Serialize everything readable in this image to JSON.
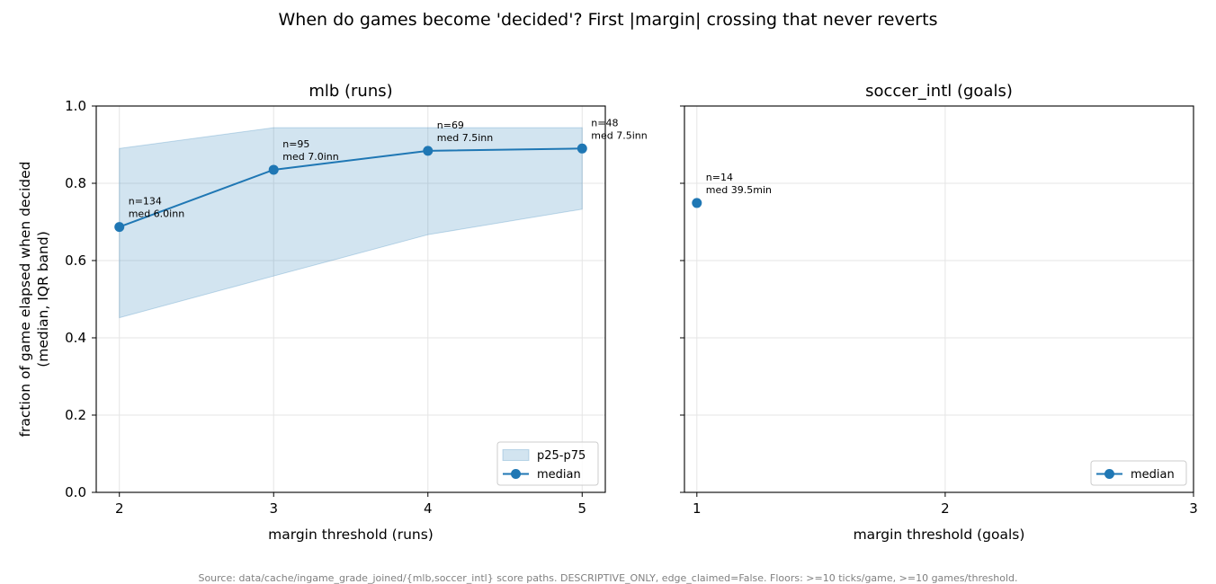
{
  "figure": {
    "suptitle": "When do games become 'decided'? First |margin| crossing that never reverts",
    "footer": "Source: data/cache/ingame_grade_joined/{mlb,soccer_intl} score paths. DESCRIPTIVE_ONLY, edge_claimed=False. Floors: >=10 ticks/game, >=10 games/threshold.",
    "colors": {
      "line": "#1f77b4",
      "band": "#1f77b4",
      "grid": "#e5e5e5",
      "footer": "#808080"
    }
  },
  "chart_data": [
    {
      "type": "line",
      "title": "mlb (runs)",
      "xlabel": "margin threshold (runs)",
      "ylabel": [
        "fraction of game elapsed when decided",
        "(median, IQR band)"
      ],
      "xlim": [
        1.85,
        5.15
      ],
      "ylim": [
        0,
        1.0
      ],
      "xticks": [
        2,
        3,
        4,
        5
      ],
      "yticks": [
        0.0,
        0.2,
        0.4,
        0.6,
        0.8,
        1.0
      ],
      "ytick_labels": [
        "0.0",
        "0.2",
        "0.4",
        "0.6",
        "0.8",
        "1.0"
      ],
      "grid": true,
      "legend_position": "lower-right",
      "legend": [
        {
          "kind": "band",
          "label": "p25-p75"
        },
        {
          "kind": "line",
          "label": "median"
        }
      ],
      "x": [
        2,
        3,
        4,
        5
      ],
      "median": [
        0.687,
        0.835,
        0.884,
        0.89
      ],
      "p25": [
        0.452,
        0.56,
        0.667,
        0.733
      ],
      "p75": [
        0.89,
        0.944,
        0.944,
        0.944
      ],
      "annotations": [
        {
          "n": "n=134",
          "med": "med 6.0inn"
        },
        {
          "n": "n=95",
          "med": "med 7.0inn"
        },
        {
          "n": "n=69",
          "med": "med 7.5inn"
        },
        {
          "n": "n=48",
          "med": "med 7.5inn"
        }
      ]
    },
    {
      "type": "line",
      "title": "soccer_intl (goals)",
      "xlabel": "margin threshold (goals)",
      "ylabel": [],
      "xlim": [
        0.95,
        3.0
      ],
      "ylim": [
        0,
        1.0
      ],
      "xticks": [
        1,
        2,
        3
      ],
      "yticks": [
        0.0,
        0.2,
        0.4,
        0.6,
        0.8,
        1.0
      ],
      "ytick_labels": [],
      "grid": true,
      "legend_position": "lower-right",
      "legend": [
        {
          "kind": "line",
          "label": "median"
        }
      ],
      "x": [
        1
      ],
      "median": [
        0.749
      ],
      "p25": [],
      "p75": [],
      "annotations": [
        {
          "n": "n=14",
          "med": "med 39.5min"
        }
      ]
    }
  ]
}
